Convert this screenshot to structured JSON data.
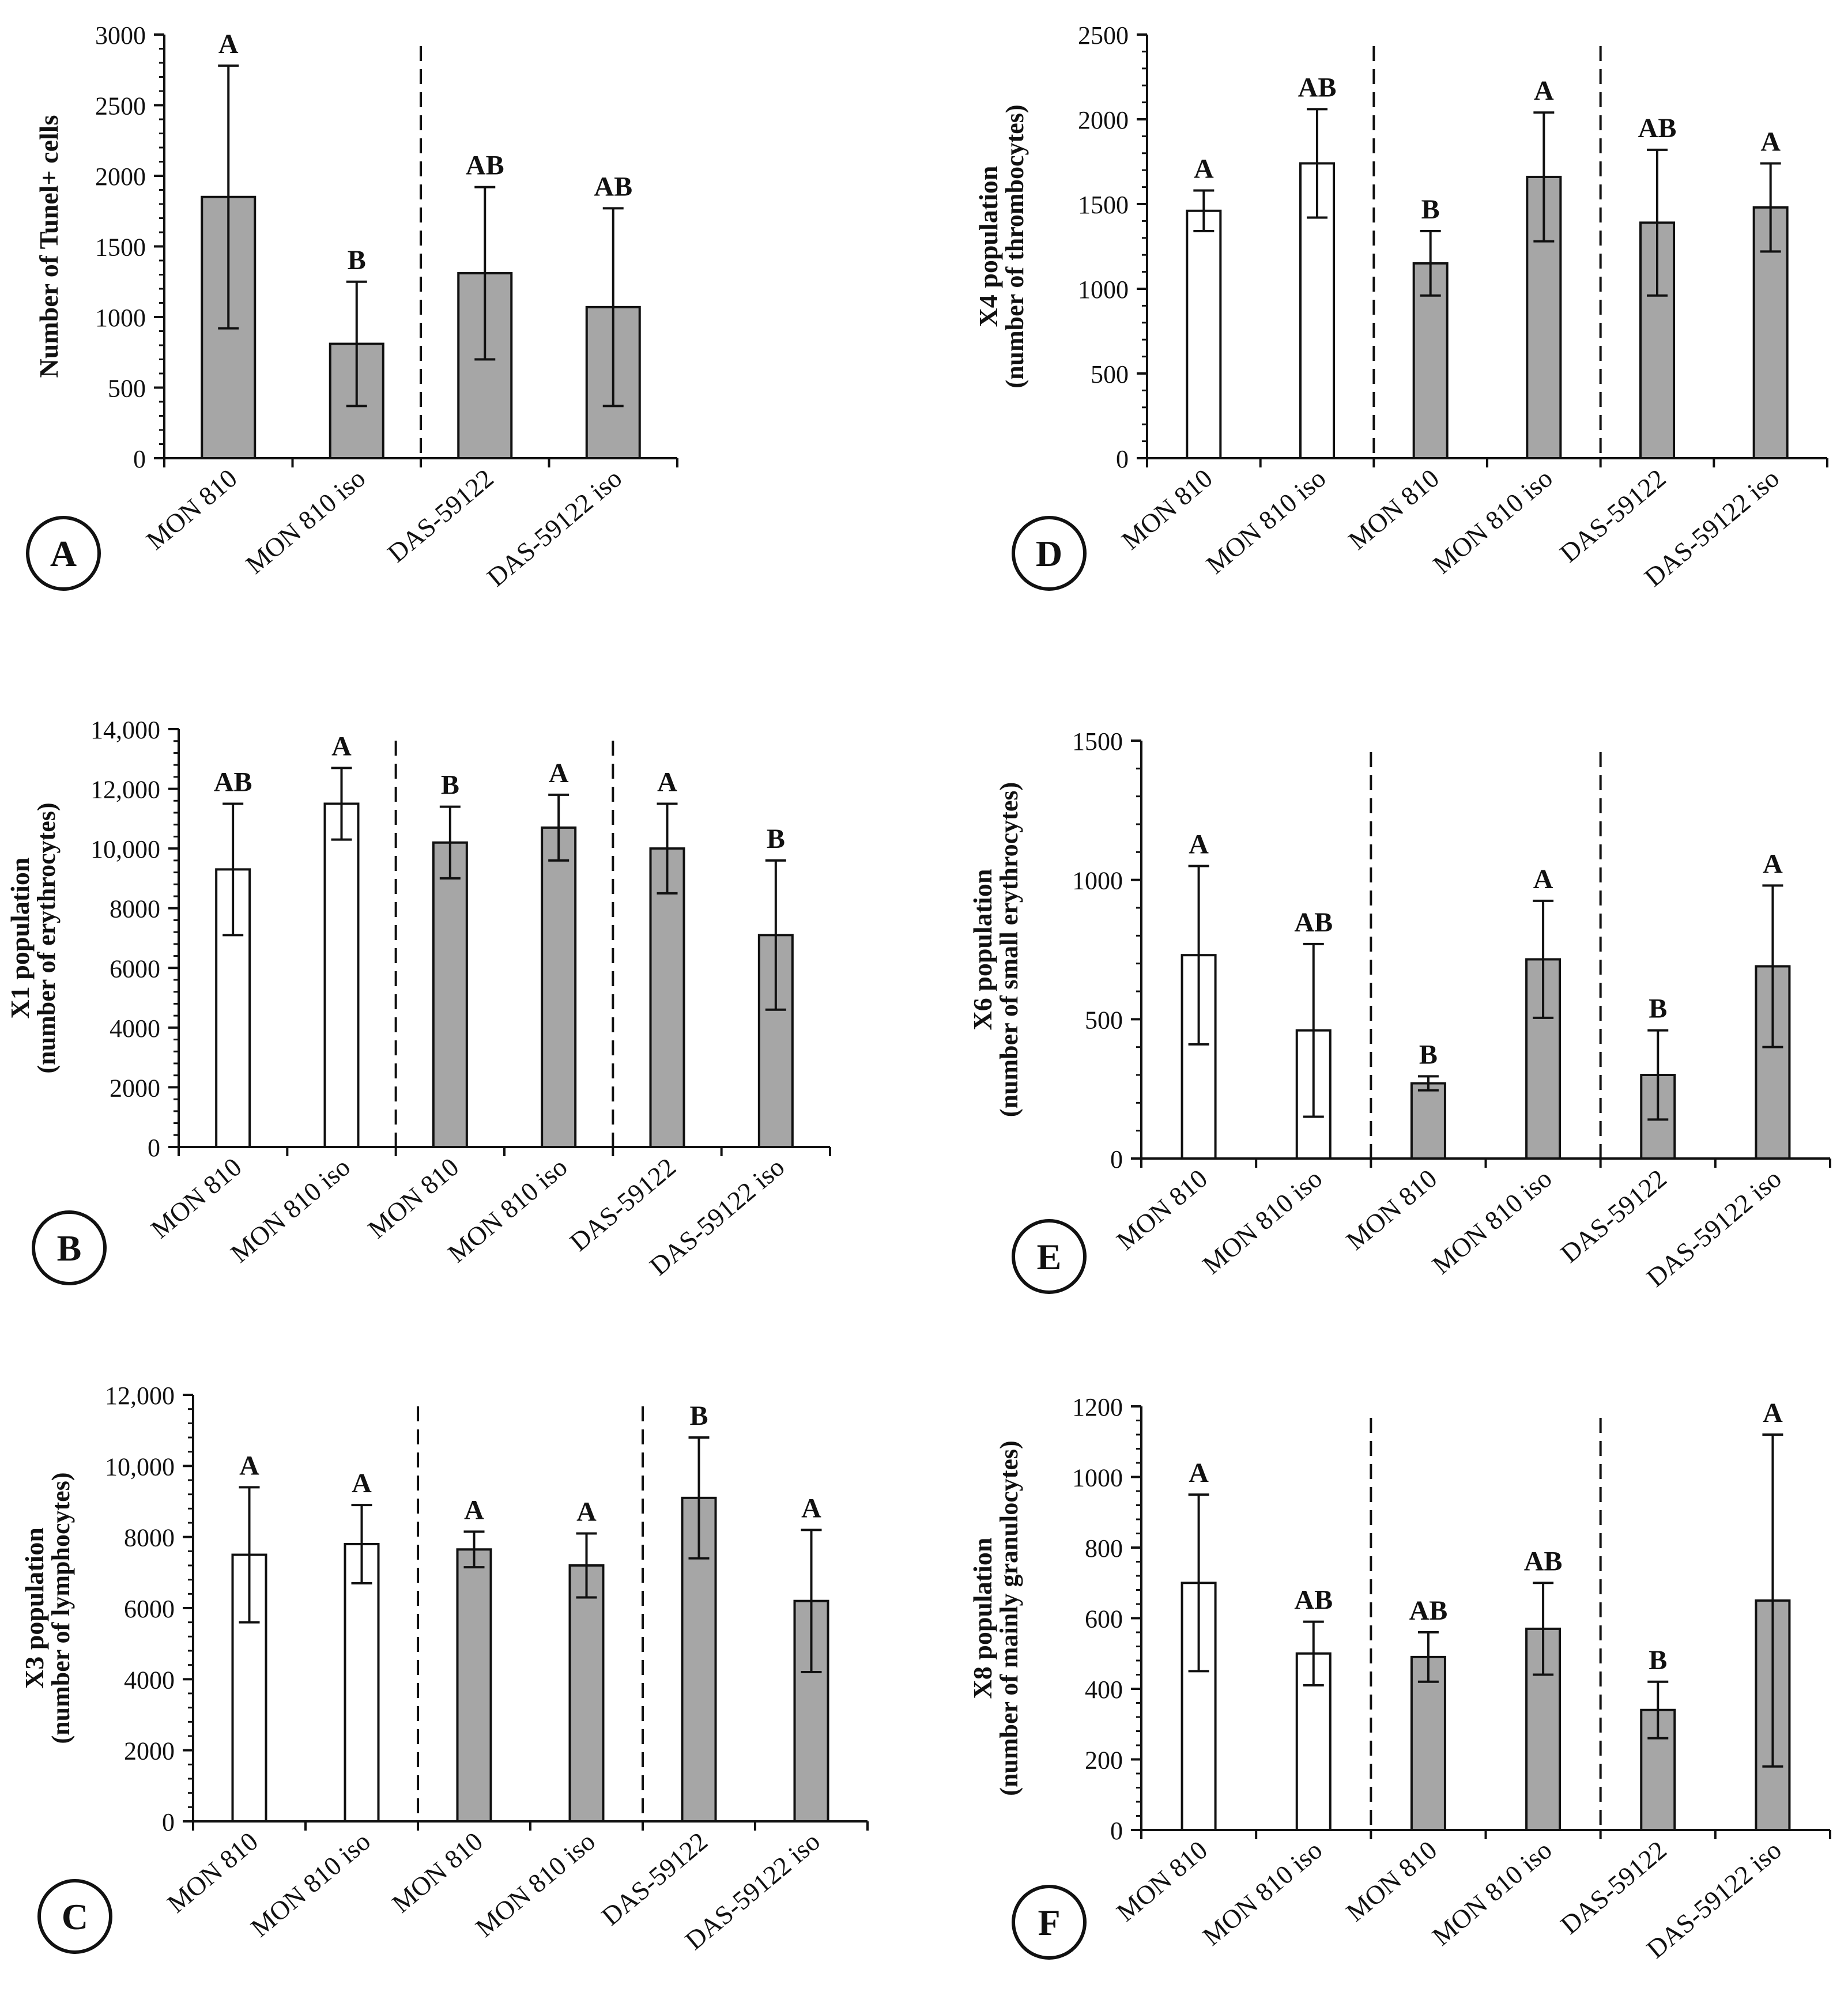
{
  "figure": {
    "colors": {
      "white_bar": "#ffffff",
      "gray_bar": "#a6a6a6",
      "line": "#111111"
    }
  },
  "chart_data": [
    {
      "panel": "A",
      "type": "bar",
      "ylabel": "Number of Tunel+ cells",
      "ylabel2": "",
      "ylim": [
        0,
        3000
      ],
      "yticks": [
        0,
        500,
        1000,
        1500,
        2000,
        2500,
        3000
      ],
      "ytick_labels": [
        "0",
        "500",
        "1000",
        "1500",
        "2000",
        "2500",
        "3000"
      ],
      "categories": [
        "MON 810",
        "MON 810 iso",
        "DAS-59122",
        "DAS-59122 iso"
      ],
      "fills": [
        "gray",
        "gray",
        "gray",
        "gray"
      ],
      "values": [
        1850,
        810,
        1310,
        1070
      ],
      "errors": [
        930,
        440,
        610,
        700
      ],
      "letters": [
        "A",
        "B",
        "AB",
        "AB"
      ],
      "separators_after": [
        1
      ]
    },
    {
      "panel": "D",
      "type": "bar",
      "ylabel": "X4 population",
      "ylabel2": "(number of thrombocytes)",
      "ylim": [
        0,
        2500
      ],
      "yticks": [
        0,
        500,
        1000,
        1500,
        2000,
        2500
      ],
      "ytick_labels": [
        "0",
        "500",
        "1000",
        "1500",
        "2000",
        "2500"
      ],
      "categories": [
        "MON 810",
        "MON 810 iso",
        "MON 810",
        "MON 810 iso",
        "DAS-59122",
        "DAS-59122 iso"
      ],
      "fills": [
        "white",
        "white",
        "gray",
        "gray",
        "gray",
        "gray"
      ],
      "values": [
        1460,
        1740,
        1150,
        1660,
        1390,
        1480
      ],
      "errors": [
        120,
        320,
        190,
        380,
        430,
        260
      ],
      "letters": [
        "A",
        "AB",
        "B",
        "A",
        "AB",
        "A"
      ],
      "separators_after": [
        1,
        3
      ]
    },
    {
      "panel": "B",
      "type": "bar",
      "ylabel": "X1 population",
      "ylabel2": "(number of erythrocytes)",
      "ylim": [
        0,
        14000
      ],
      "yticks": [
        0,
        2000,
        4000,
        6000,
        8000,
        10000,
        12000,
        14000
      ],
      "ytick_labels": [
        "0",
        "2000",
        "4000",
        "6000",
        "8000",
        "10,000",
        "12,000",
        "14,000"
      ],
      "categories": [
        "MON 810",
        "MON 810 iso",
        "MON 810",
        "MON 810 iso",
        "DAS-59122",
        "DAS-59122 iso"
      ],
      "fills": [
        "white",
        "white",
        "gray",
        "gray",
        "gray",
        "gray"
      ],
      "values": [
        9300,
        11500,
        10200,
        10700,
        10000,
        7100
      ],
      "errors": [
        2200,
        1200,
        1200,
        1100,
        1500,
        2500
      ],
      "letters": [
        "AB",
        "A",
        "B",
        "A",
        "A",
        "B"
      ],
      "separators_after": [
        1,
        3
      ]
    },
    {
      "panel": "E",
      "type": "bar",
      "ylabel": "X6 population",
      "ylabel2": "(number of small erythrocytes)",
      "ylim": [
        0,
        1500
      ],
      "yticks": [
        0,
        500,
        1000,
        1500
      ],
      "ytick_labels": [
        "0",
        "500",
        "1000",
        "1500"
      ],
      "categories": [
        "MON 810",
        "MON 810 iso",
        "MON 810",
        "MON 810 iso",
        "DAS-59122",
        "DAS-59122 iso"
      ],
      "fills": [
        "white",
        "white",
        "gray",
        "gray",
        "gray",
        "gray"
      ],
      "values": [
        730,
        460,
        270,
        715,
        300,
        690
      ],
      "errors": [
        320,
        310,
        25,
        210,
        160,
        290
      ],
      "letters": [
        "A",
        "AB",
        "B",
        "A",
        "B",
        "A"
      ],
      "separators_after": [
        1,
        3
      ]
    },
    {
      "panel": "C",
      "type": "bar",
      "ylabel": "X3 population",
      "ylabel2": "(number of lymphocytes)",
      "ylim": [
        0,
        12000
      ],
      "yticks": [
        0,
        2000,
        4000,
        6000,
        8000,
        10000,
        12000
      ],
      "ytick_labels": [
        "0",
        "2000",
        "4000",
        "6000",
        "8000",
        "10,000",
        "12,000"
      ],
      "categories": [
        "MON 810",
        "MON 810 iso",
        "MON 810",
        "MON 810 iso",
        "DAS-59122",
        "DAS-59122 iso"
      ],
      "fills": [
        "white",
        "white",
        "gray",
        "gray",
        "gray",
        "gray"
      ],
      "values": [
        7500,
        7800,
        7650,
        7200,
        9100,
        6200
      ],
      "errors": [
        1900,
        1100,
        500,
        900,
        1700,
        2000
      ],
      "letters": [
        "A",
        "A",
        "A",
        "A",
        "B",
        "A"
      ],
      "separators_after": [
        1,
        3
      ]
    },
    {
      "panel": "F",
      "type": "bar",
      "ylabel": "X8 population",
      "ylabel2": "(number of mainly granulocytes)",
      "ylim": [
        0,
        1200
      ],
      "yticks": [
        0,
        200,
        400,
        600,
        800,
        1000,
        1200
      ],
      "ytick_labels": [
        "0",
        "200",
        "400",
        "600",
        "800",
        "1000",
        "1200"
      ],
      "categories": [
        "MON 810",
        "MON 810 iso",
        "MON 810",
        "MON 810 iso",
        "DAS-59122",
        "DAS-59122 iso"
      ],
      "fills": [
        "white",
        "white",
        "gray",
        "gray",
        "gray",
        "gray"
      ],
      "values": [
        700,
        500,
        490,
        570,
        340,
        650
      ],
      "errors": [
        250,
        90,
        70,
        130,
        80,
        470
      ],
      "letters": [
        "A",
        "AB",
        "AB",
        "AB",
        "B",
        "A"
      ],
      "separators_after": [
        1,
        3
      ]
    }
  ]
}
